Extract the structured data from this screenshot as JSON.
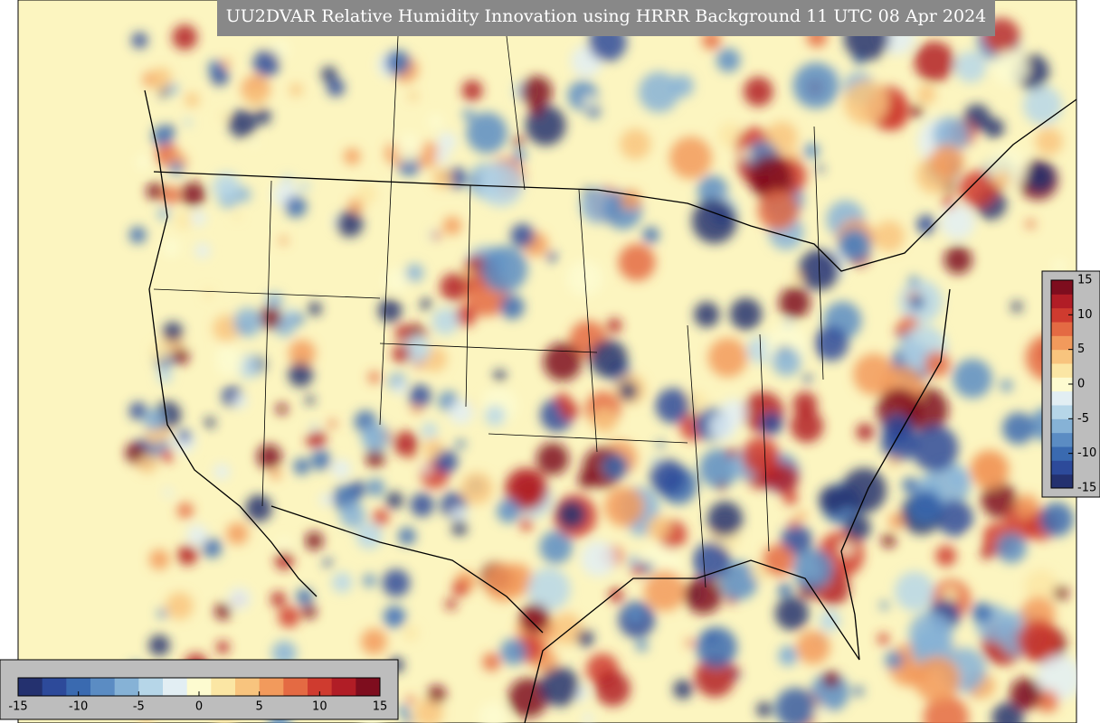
{
  "header": {
    "title": "UU2DVAR Relative Humidity Innovation using HRRR Background 11 UTC 08 Apr 2024"
  },
  "colorbar": {
    "range": [
      -15,
      15
    ],
    "colors": [
      "#24316f",
      "#2d4a9a",
      "#3a6ab0",
      "#5b8cc3",
      "#86b2d6",
      "#b6d6e8",
      "#e2eef3",
      "#fdfbd0",
      "#fbe6a4",
      "#f8c47e",
      "#f29a5c",
      "#e46a43",
      "#cf3b2f",
      "#b11d26",
      "#7e0d1e"
    ],
    "vertical_ticks": [
      15,
      10,
      5,
      0,
      -5,
      -10,
      -15
    ],
    "horizontal_ticks": [
      -15,
      -10,
      -5,
      0,
      5,
      10,
      15
    ]
  }
}
